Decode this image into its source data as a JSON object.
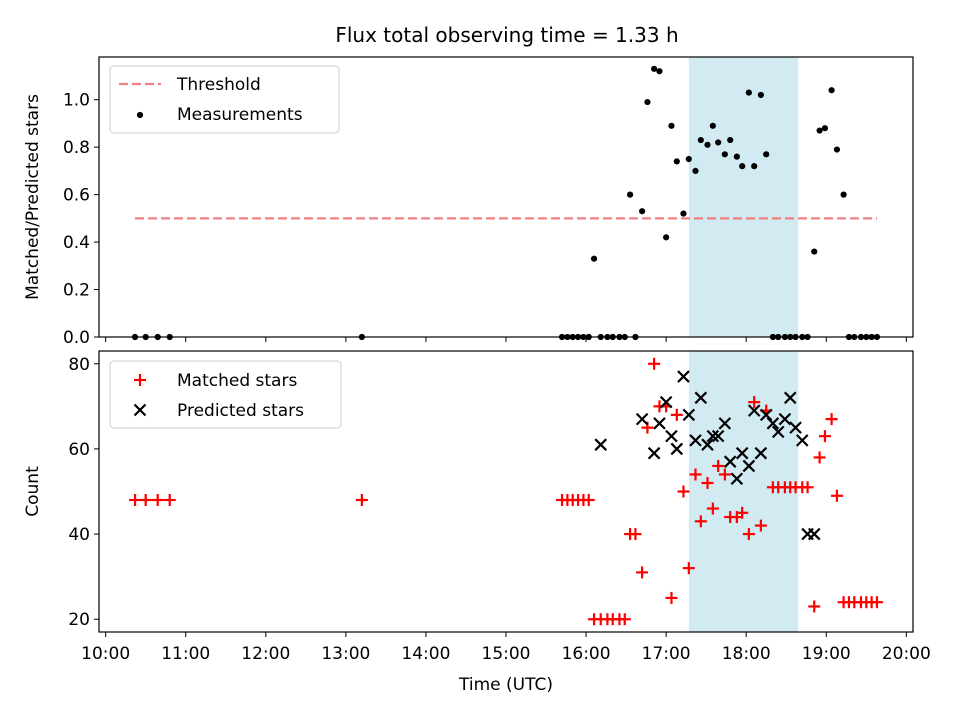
{
  "figure": {
    "title": "Flux total observing time = 1.33 h"
  },
  "colors": {
    "threshold": "#f08080",
    "measurement": "#000000",
    "matched": "#ff0000",
    "predicted": "#000000",
    "shaded_span": "#add8e6"
  },
  "chart_data": [
    {
      "type": "scatter",
      "panel": "top",
      "ylabel": "Matched/Predicted stars",
      "xlim": [
        "09:55",
        "20:05"
      ],
      "ylim": [
        0,
        1.18
      ],
      "yticks": [
        0.0,
        0.2,
        0.4,
        0.6,
        0.8,
        1.0
      ],
      "ytick_labels": [
        "0.0",
        "0.2",
        "0.4",
        "0.6",
        "0.8",
        "1.0"
      ],
      "legend_position": "top-left",
      "shaded_span": [
        "17:17",
        "18:39"
      ],
      "threshold": {
        "name": "Threshold",
        "value": 0.5,
        "x_range": [
          "10:22",
          "19:38"
        ]
      },
      "series": [
        {
          "name": "Measurements",
          "marker": "dot",
          "x": [
            "10:22",
            "10:30",
            "10:39",
            "10:48",
            "13:12",
            "15:42",
            "15:46",
            "15:50",
            "15:54",
            "15:58",
            "16:02",
            "16:06",
            "16:11",
            "16:16",
            "16:20",
            "16:25",
            "16:29",
            "16:33",
            "16:37",
            "16:42",
            "16:46",
            "16:51",
            "16:55",
            "17:00",
            "17:04",
            "17:08",
            "17:13",
            "17:17",
            "17:22",
            "17:26",
            "17:31",
            "17:35",
            "17:39",
            "17:44",
            "17:48",
            "17:53",
            "17:57",
            "18:02",
            "18:06",
            "18:11",
            "18:15",
            "18:20",
            "18:24",
            "18:29",
            "18:33",
            "18:37",
            "18:42",
            "18:46",
            "18:51",
            "18:55",
            "18:59",
            "19:04",
            "19:08",
            "19:13",
            "19:17",
            "19:21",
            "19:26",
            "19:30",
            "19:34",
            "19:38"
          ],
          "y": [
            0,
            0,
            0,
            0,
            0,
            0,
            0,
            0,
            0,
            0,
            0,
            0.33,
            0,
            0,
            0,
            0,
            0,
            0.6,
            0,
            0.53,
            0.99,
            1.13,
            1.12,
            0.42,
            0.89,
            0.74,
            0.52,
            0.75,
            0.7,
            0.83,
            0.81,
            0.89,
            0.82,
            0.77,
            0.83,
            0.76,
            0.72,
            1.03,
            0.72,
            1.02,
            0.77,
            0,
            0,
            0,
            0,
            0,
            0,
            0,
            0.36,
            0.87,
            0.88,
            1.04,
            0.79,
            0.6,
            0,
            0,
            0,
            0,
            0,
            0
          ]
        }
      ]
    },
    {
      "type": "scatter",
      "panel": "bottom",
      "xlabel": "Time (UTC)",
      "ylabel": "Count",
      "xlim": [
        "09:55",
        "20:05"
      ],
      "ylim": [
        17,
        83
      ],
      "yticks": [
        20,
        40,
        60,
        80
      ],
      "ytick_labels": [
        "20",
        "40",
        "60",
        "80"
      ],
      "xticks": [
        "10:00",
        "11:00",
        "12:00",
        "13:00",
        "14:00",
        "15:00",
        "16:00",
        "17:00",
        "18:00",
        "19:00",
        "20:00"
      ],
      "legend_position": "top-left",
      "shaded_span": [
        "17:17",
        "18:39"
      ],
      "series": [
        {
          "name": "Matched stars",
          "marker": "plus",
          "x": [
            "10:22",
            "10:30",
            "10:39",
            "10:48",
            "13:12",
            "15:42",
            "15:46",
            "15:50",
            "15:54",
            "15:58",
            "16:02",
            "16:06",
            "16:11",
            "16:16",
            "16:20",
            "16:25",
            "16:29",
            "16:33",
            "16:37",
            "16:42",
            "16:46",
            "16:51",
            "16:55",
            "17:00",
            "17:04",
            "17:08",
            "17:13",
            "17:17",
            "17:22",
            "17:26",
            "17:31",
            "17:35",
            "17:39",
            "17:44",
            "17:48",
            "17:53",
            "17:57",
            "18:02",
            "18:06",
            "18:11",
            "18:15",
            "18:20",
            "18:24",
            "18:29",
            "18:33",
            "18:37",
            "18:42",
            "18:46",
            "18:51",
            "18:55",
            "18:59",
            "19:04",
            "19:08",
            "19:13",
            "19:17",
            "19:21",
            "19:26",
            "19:30",
            "19:34",
            "19:38"
          ],
          "y": [
            48,
            48,
            48,
            48,
            48,
            48,
            48,
            48,
            48,
            48,
            48,
            20,
            20,
            20,
            20,
            20,
            20,
            40,
            40,
            31,
            65,
            80,
            70,
            70,
            25,
            68,
            50,
            32,
            54,
            43,
            52,
            46,
            56,
            54,
            44,
            44,
            45,
            40,
            71,
            42,
            69,
            51,
            51,
            51,
            51,
            51,
            51,
            51,
            23,
            58,
            63,
            67,
            49,
            24,
            24,
            24,
            24,
            24,
            24,
            24
          ]
        },
        {
          "name": "Predicted stars",
          "marker": "x",
          "x": [
            "16:11",
            "16:42",
            "16:51",
            "16:55",
            "17:00",
            "17:04",
            "17:08",
            "17:13",
            "17:17",
            "17:22",
            "17:26",
            "17:31",
            "17:35",
            "17:39",
            "17:44",
            "17:48",
            "17:53",
            "17:57",
            "18:02",
            "18:06",
            "18:11",
            "18:15",
            "18:20",
            "18:24",
            "18:29",
            "18:33",
            "18:37",
            "18:42",
            "18:46",
            "18:51"
          ],
          "y": [
            61,
            67,
            59,
            66,
            71,
            63,
            60,
            77,
            68,
            62,
            72,
            61,
            63,
            63,
            66,
            57,
            53,
            59,
            56,
            69,
            59,
            68,
            66,
            64,
            67,
            72,
            65,
            62,
            40,
            40
          ]
        }
      ]
    }
  ]
}
